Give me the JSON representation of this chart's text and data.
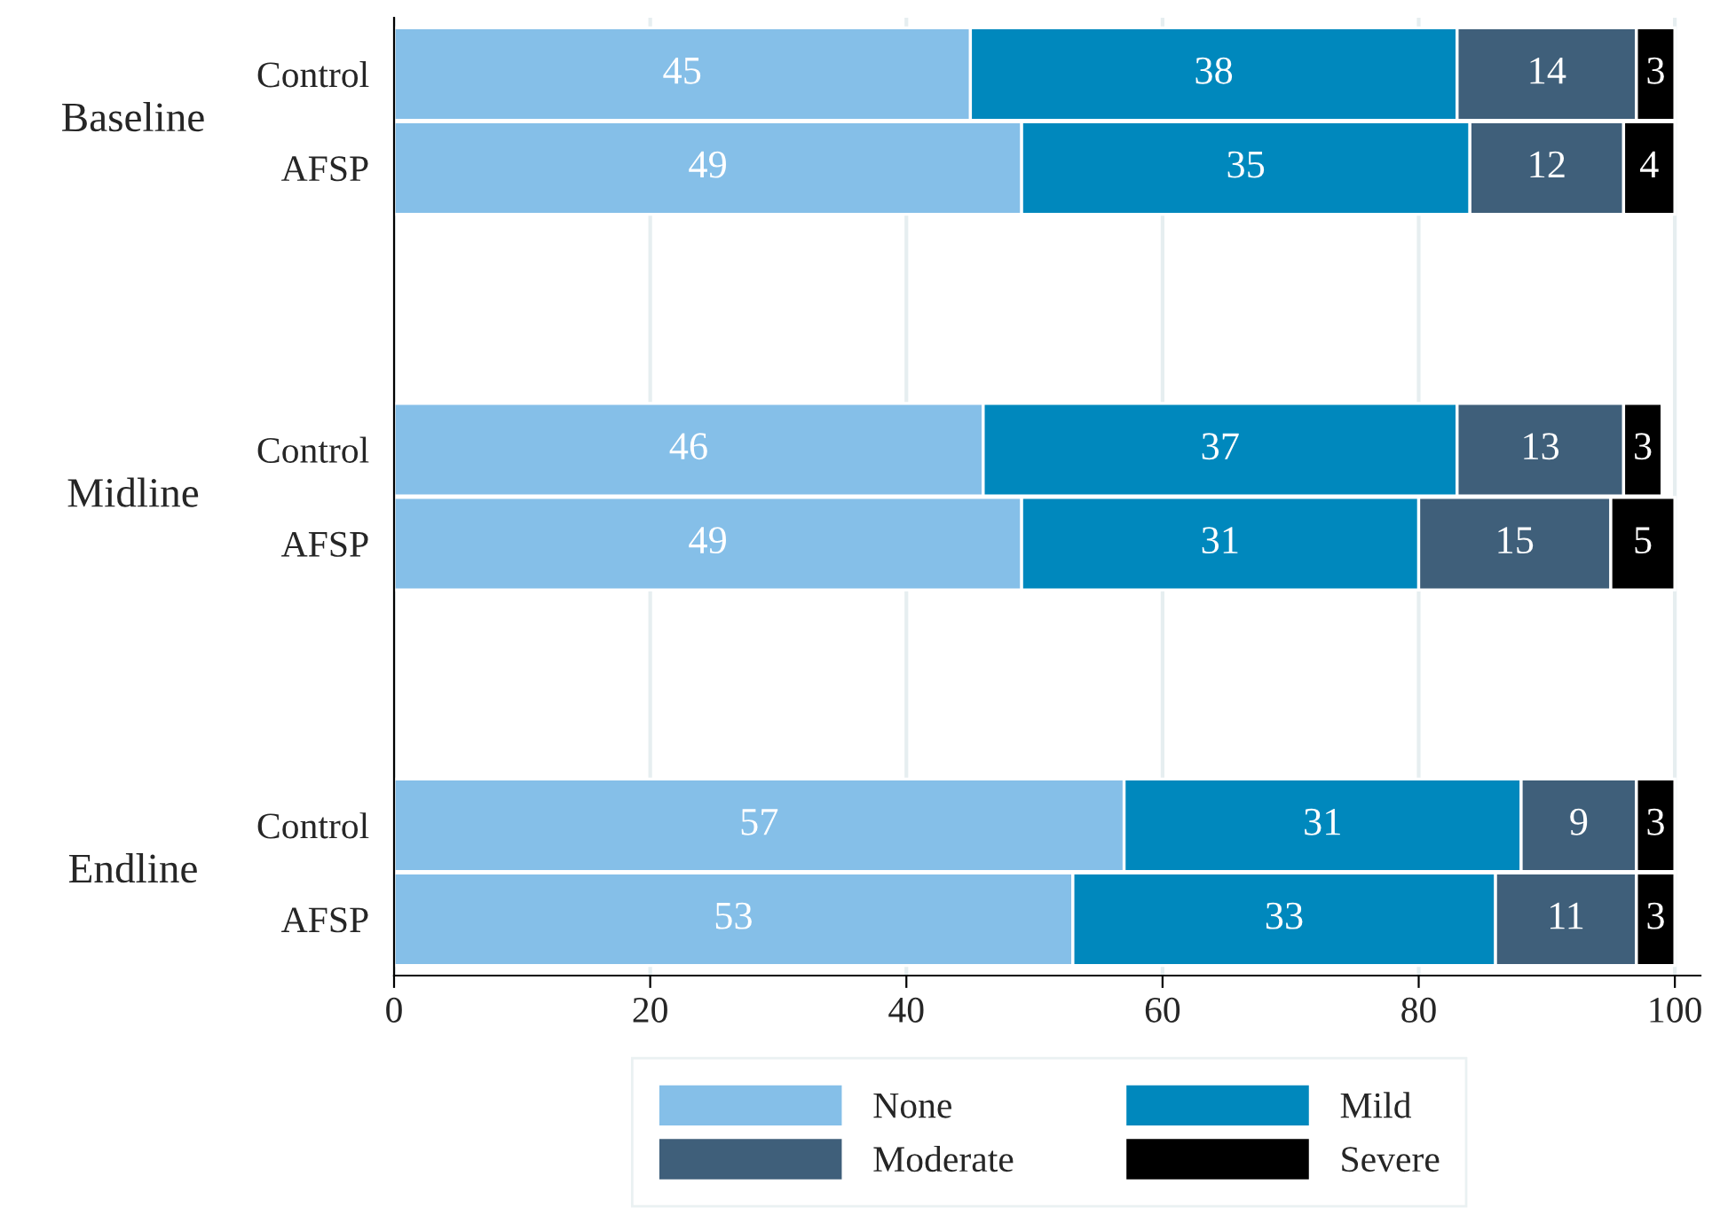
{
  "chart_data": {
    "type": "bar",
    "orientation": "horizontal",
    "stacked": true,
    "categories": [
      "Control",
      "AFSP",
      null,
      null,
      "Control",
      "AFSP",
      null,
      null,
      "Control",
      "AFSP"
    ],
    "annotations": [
      "Baseline",
      "Midline",
      "Endline"
    ],
    "series": [
      {
        "name": "None",
        "color": "#85bfe8",
        "values": [
          45,
          49,
          null,
          null,
          46,
          49,
          null,
          null,
          57,
          53
        ]
      },
      {
        "name": "Mild",
        "color": "#0088bd",
        "values": [
          38,
          35,
          null,
          null,
          37,
          31,
          null,
          null,
          31,
          33
        ]
      },
      {
        "name": "Moderate",
        "color": "#3f5f7a",
        "values": [
          14,
          12,
          null,
          null,
          13,
          15,
          null,
          null,
          9,
          11
        ]
      },
      {
        "name": "Severe",
        "color": "#000000",
        "values": [
          3,
          4,
          null,
          null,
          3,
          5,
          null,
          null,
          3,
          3
        ]
      }
    ],
    "xlim": [
      0,
      102
    ],
    "xticks": [
      0,
      20,
      40,
      60,
      80,
      100
    ],
    "grid": "x",
    "legend": "bottom",
    "data_labels": true
  }
}
